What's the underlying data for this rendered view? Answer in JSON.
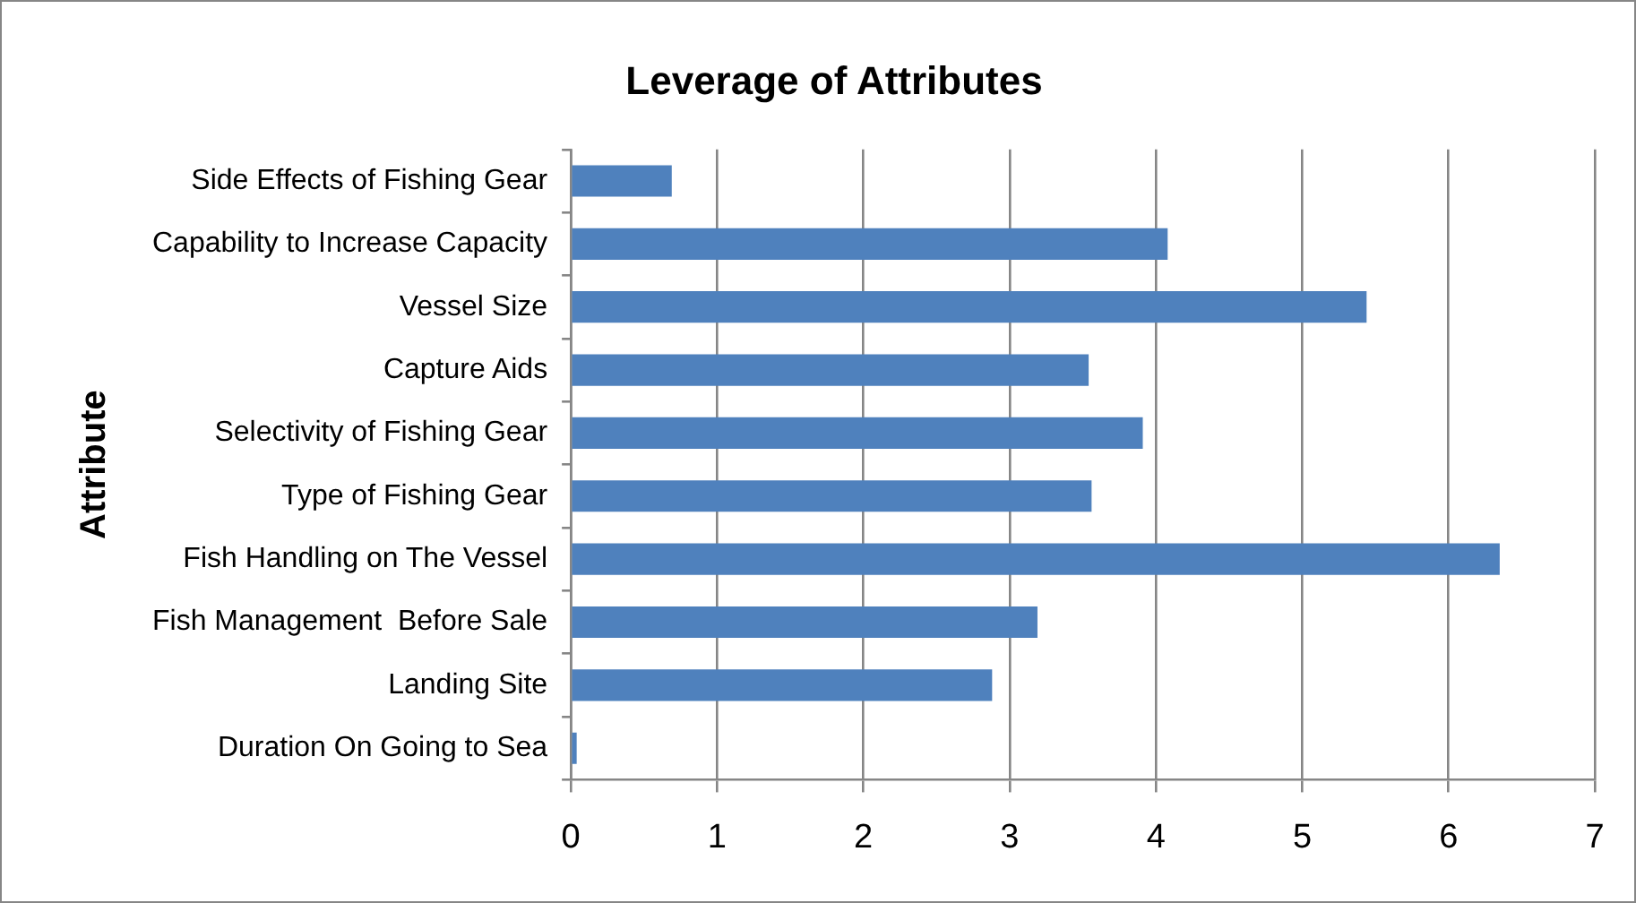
{
  "chart_data": {
    "type": "bar",
    "orientation": "horizontal",
    "title": "Leverage of Attributes",
    "ylabel": "Attribute",
    "categories": [
      "Side Effects of Fishing Gear",
      "Capability to Increase Capacity",
      "Vessel Size",
      "Capture Aids",
      "Selectivity of Fishing Gear",
      "Type of Fishing Gear",
      "Fish Handling on The Vessel",
      "Fish Management  Before Sale",
      "Landing Site",
      "Duration On Going to Sea"
    ],
    "values": [
      0.69,
      4.08,
      5.44,
      3.54,
      3.91,
      3.56,
      6.35,
      3.19,
      2.88,
      0.04
    ],
    "color": "#4f81bd",
    "xlim": [
      0,
      7
    ],
    "xticks": [
      0,
      1,
      2,
      3,
      4,
      5,
      6,
      7
    ],
    "grid": "x",
    "legend": false
  }
}
